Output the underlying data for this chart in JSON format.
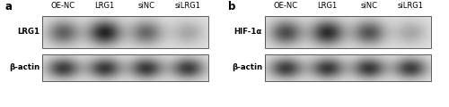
{
  "fig_width": 5.0,
  "fig_height": 1.2,
  "dpi": 100,
  "bg_color": "#ffffff",
  "panel_a": {
    "label": "a",
    "columns": [
      "OE-NC",
      "LRG1",
      "siNC",
      "siLRG1"
    ],
    "row1_label": "LRG1",
    "row2_label": "β-actin",
    "band1_intensities": [
      0.62,
      0.92,
      0.58,
      0.28
    ],
    "band2_intensities": [
      0.8,
      0.82,
      0.82,
      0.8
    ]
  },
  "panel_b": {
    "label": "b",
    "columns": [
      "OE-NC",
      "LRG1",
      "siNC",
      "siLRG1"
    ],
    "row1_label": "HIF-1α",
    "row2_label": "β-actin",
    "band1_intensities": [
      0.72,
      0.88,
      0.68,
      0.28
    ],
    "band2_intensities": [
      0.8,
      0.82,
      0.82,
      0.8
    ]
  },
  "col_fontsize": 6.0,
  "panel_label_fontsize": 8.5,
  "row_label_fontsize": 6.2
}
